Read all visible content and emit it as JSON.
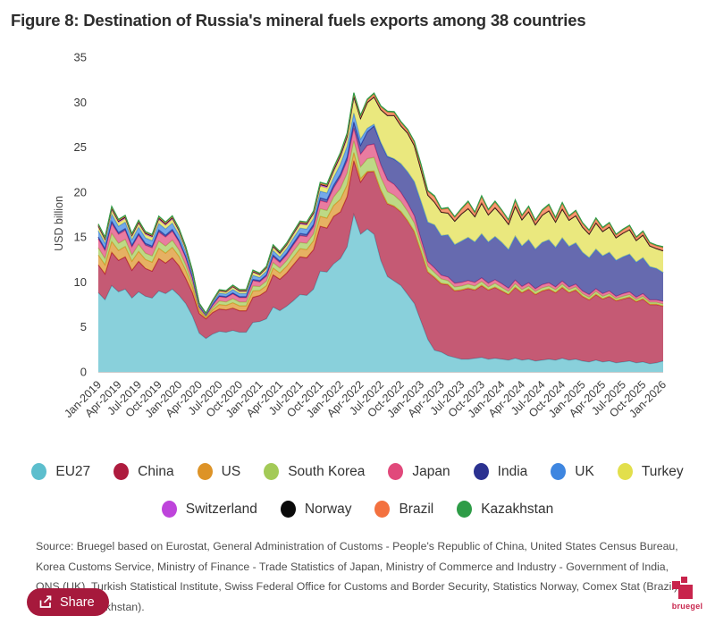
{
  "title": "Figure 8: Destination of Russia's mineral fuels exports among 38 countries",
  "source": "Source: Bruegel based on Eurostat, General Administration of Customs - People's Republic of China, United States Census Bureau, Korea Customs Service, Ministry of Finance - Trade Statistics of Japan, Ministry of Commerce and Industry - Government of India, ONS (UK), Turkish Statistical Institute, Swiss Federal Office for Customs and Border Security, Statistics Norway, Comex Stat (Brazil), Qazstat (Kazakhstan).",
  "share": {
    "label": "Share"
  },
  "logo": {
    "text": "bruegel",
    "color": "#c8244c"
  },
  "legend": {
    "rows": [
      [
        "EU27",
        "China",
        "US",
        "South Korea",
        "Japan",
        "India",
        "UK",
        "Turkey"
      ],
      [
        "Switzerland",
        "Norway",
        "Brazil",
        "Kazakhstan"
      ]
    ]
  },
  "chart_data": {
    "type": "area",
    "stacked": true,
    "title": "",
    "xlabel": "",
    "ylabel": "USD billion",
    "ylim": [
      0,
      35
    ],
    "yticks": [
      0,
      5,
      10,
      15,
      20,
      25,
      30,
      35
    ],
    "grid": false,
    "legend_position": "bottom",
    "x_tick_every": 3,
    "months": [
      "Jan-2019",
      "Feb-2019",
      "Mar-2019",
      "Apr-2019",
      "May-2019",
      "Jun-2019",
      "Jul-2019",
      "Aug-2019",
      "Sep-2019",
      "Oct-2019",
      "Nov-2019",
      "Dec-2019",
      "Jan-2020",
      "Feb-2020",
      "Mar-2020",
      "Apr-2020",
      "May-2020",
      "Jun-2020",
      "Jul-2020",
      "Aug-2020",
      "Sep-2020",
      "Oct-2020",
      "Nov-2020",
      "Dec-2020",
      "Jan-2021",
      "Feb-2021",
      "Mar-2021",
      "Apr-2021",
      "May-2021",
      "Jun-2021",
      "Jul-2021",
      "Aug-2021",
      "Sep-2021",
      "Oct-2021",
      "Nov-2021",
      "Dec-2021",
      "Jan-2022",
      "Feb-2022",
      "Mar-2022",
      "Apr-2022",
      "May-2022",
      "Jun-2022",
      "Jul-2022",
      "Aug-2022",
      "Sep-2022",
      "Oct-2022",
      "Nov-2022",
      "Dec-2022",
      "Jan-2023",
      "Feb-2023",
      "Mar-2023",
      "Apr-2023",
      "May-2023",
      "Jun-2023",
      "Jul-2023",
      "Aug-2023",
      "Sep-2023",
      "Oct-2023",
      "Nov-2023",
      "Dec-2023",
      "Jan-2024",
      "Feb-2024",
      "Mar-2024",
      "Apr-2024",
      "May-2024",
      "Jun-2024",
      "Jul-2024",
      "Aug-2024",
      "Sep-2024",
      "Oct-2024",
      "Nov-2024",
      "Dec-2024",
      "Jan-2025",
      "Feb-2025",
      "Mar-2025",
      "Apr-2025",
      "May-2025",
      "Jun-2025",
      "Jul-2025",
      "Aug-2025",
      "Sep-2025",
      "Oct-2025",
      "Nov-2025",
      "Dec-2025",
      "Jan-2026"
    ],
    "series": [
      {
        "name": "EU27",
        "color": "#5cbecd",
        "values": [
          8.8,
          8.0,
          9.6,
          8.9,
          9.2,
          8.2,
          8.9,
          8.4,
          8.2,
          9.0,
          8.7,
          9.2,
          8.5,
          7.6,
          6.2,
          4.3,
          3.7,
          4.2,
          4.5,
          4.4,
          4.6,
          4.4,
          4.4,
          5.5,
          5.6,
          5.9,
          7.2,
          6.8,
          7.3,
          7.9,
          8.6,
          8.5,
          9.2,
          11.2,
          11.1,
          12.0,
          12.6,
          13.9,
          17.5,
          15.3,
          15.9,
          15.3,
          12.4,
          10.6,
          10.1,
          9.6,
          8.6,
          7.6,
          5.6,
          3.6,
          2.4,
          2.2,
          1.8,
          1.6,
          1.4,
          1.4,
          1.5,
          1.6,
          1.4,
          1.5,
          1.4,
          1.3,
          1.5,
          1.3,
          1.4,
          1.2,
          1.3,
          1.4,
          1.3,
          1.5,
          1.3,
          1.4,
          1.2,
          1.1,
          1.3,
          1.1,
          1.2,
          1.0,
          1.1,
          1.2,
          1.0,
          1.1,
          0.9,
          1.0,
          1.2
        ]
      },
      {
        "name": "China",
        "color": "#ae1b3e",
        "values": [
          3.1,
          2.9,
          3.7,
          3.5,
          3.6,
          3.1,
          3.4,
          3.1,
          3.0,
          3.6,
          3.4,
          3.5,
          3.3,
          2.8,
          2.6,
          2.2,
          2.2,
          2.4,
          2.5,
          2.5,
          2.5,
          2.4,
          2.4,
          2.8,
          2.9,
          3.1,
          3.6,
          3.5,
          3.7,
          4.0,
          4.2,
          4.2,
          4.4,
          5.0,
          4.9,
          5.3,
          5.2,
          5.6,
          6.0,
          5.8,
          6.3,
          7.0,
          7.8,
          8.1,
          8.3,
          8.2,
          8.2,
          8.0,
          7.8,
          7.5,
          8.1,
          7.6,
          7.9,
          7.4,
          7.7,
          7.9,
          7.6,
          8.0,
          7.7,
          7.9,
          7.6,
          7.3,
          7.9,
          7.5,
          7.8,
          7.4,
          7.7,
          7.8,
          7.5,
          7.9,
          7.5,
          7.7,
          7.2,
          6.9,
          7.3,
          7.0,
          7.2,
          6.9,
          7.0,
          7.1,
          6.8,
          7.0,
          6.6,
          6.5,
          6.1
        ]
      },
      {
        "name": "US",
        "color": "#dd9327",
        "values": [
          1.1,
          1.0,
          1.2,
          1.1,
          1.15,
          1.0,
          1.1,
          1.0,
          1.0,
          1.15,
          1.1,
          1.15,
          1.05,
          0.9,
          0.65,
          0.3,
          0.15,
          0.3,
          0.5,
          0.5,
          0.6,
          0.55,
          0.55,
          0.7,
          0.55,
          0.6,
          0.75,
          0.7,
          0.75,
          0.85,
          0.9,
          0.9,
          1.0,
          1.1,
          1.1,
          1.2,
          1.4,
          1.3,
          0.9,
          0.4,
          0.1,
          0.05,
          0.05,
          0.05,
          0.05,
          0.05,
          0.05,
          0.05,
          0.05,
          0.05,
          0.05,
          0.05,
          0.05,
          0.05,
          0.05,
          0.05,
          0.05,
          0.05,
          0.05,
          0.05,
          0.05,
          0.05,
          0.05,
          0.05,
          0.05,
          0.05,
          0.05,
          0.05,
          0.05,
          0.05,
          0.05,
          0.05,
          0.05,
          0.05,
          0.05,
          0.05,
          0.05,
          0.05,
          0.05,
          0.05,
          0.05,
          0.05,
          0.05,
          0.05,
          0.05
        ]
      },
      {
        "name": "South Korea",
        "color": "#a3ca57",
        "values": [
          0.8,
          0.7,
          0.9,
          0.8,
          0.8,
          0.7,
          0.8,
          0.7,
          0.7,
          0.8,
          0.8,
          0.8,
          0.7,
          0.6,
          0.45,
          0.2,
          0.1,
          0.25,
          0.38,
          0.38,
          0.45,
          0.42,
          0.42,
          0.55,
          0.45,
          0.5,
          0.6,
          0.55,
          0.6,
          0.65,
          0.7,
          0.7,
          0.75,
          0.85,
          0.85,
          0.95,
          1.2,
          1.3,
          1.3,
          1.3,
          1.4,
          1.5,
          1.4,
          1.3,
          1.2,
          1.1,
          1.0,
          0.9,
          0.7,
          0.6,
          0.5,
          0.5,
          0.4,
          0.4,
          0.4,
          0.4,
          0.4,
          0.4,
          0.3,
          0.4,
          0.35,
          0.3,
          0.35,
          0.3,
          0.3,
          0.3,
          0.3,
          0.3,
          0.3,
          0.3,
          0.3,
          0.3,
          0.25,
          0.25,
          0.3,
          0.25,
          0.25,
          0.2,
          0.25,
          0.25,
          0.2,
          0.25,
          0.2,
          0.2,
          0.2
        ]
      },
      {
        "name": "Japan",
        "color": "#e1497b",
        "values": [
          1.0,
          0.9,
          1.1,
          1.0,
          1.0,
          0.9,
          1.0,
          0.9,
          0.9,
          1.0,
          1.0,
          1.0,
          0.9,
          0.8,
          0.55,
          0.25,
          0.12,
          0.3,
          0.48,
          0.48,
          0.52,
          0.48,
          0.48,
          0.6,
          0.5,
          0.55,
          0.65,
          0.6,
          0.65,
          0.7,
          0.75,
          0.75,
          0.8,
          0.9,
          0.9,
          1.0,
          1.3,
          1.4,
          1.4,
          1.4,
          1.5,
          1.5,
          1.4,
          1.3,
          1.2,
          1.0,
          0.9,
          0.8,
          0.6,
          0.5,
          0.5,
          0.4,
          0.4,
          0.4,
          0.4,
          0.4,
          0.4,
          0.4,
          0.4,
          0.4,
          0.4,
          0.35,
          0.4,
          0.35,
          0.35,
          0.3,
          0.35,
          0.35,
          0.3,
          0.35,
          0.3,
          0.3,
          0.3,
          0.3,
          0.3,
          0.3,
          0.3,
          0.25,
          0.3,
          0.3,
          0.25,
          0.3,
          0.25,
          0.25,
          0.3
        ]
      },
      {
        "name": "India",
        "color": "#2b3190",
        "values": [
          0.2,
          0.2,
          0.25,
          0.2,
          0.2,
          0.2,
          0.2,
          0.2,
          0.2,
          0.25,
          0.2,
          0.2,
          0.18,
          0.15,
          0.1,
          0.05,
          0.04,
          0.06,
          0.1,
          0.1,
          0.12,
          0.12,
          0.12,
          0.14,
          0.15,
          0.16,
          0.2,
          0.18,
          0.2,
          0.22,
          0.24,
          0.24,
          0.26,
          0.3,
          0.3,
          0.32,
          0.3,
          0.4,
          0.7,
          1.0,
          1.5,
          2.0,
          2.4,
          2.6,
          2.8,
          3.2,
          3.5,
          3.8,
          4.2,
          4.4,
          4.8,
          4.4,
          4.7,
          4.3,
          4.6,
          4.8,
          4.5,
          4.9,
          4.6,
          4.8,
          4.6,
          4.3,
          4.9,
          4.5,
          4.8,
          4.4,
          4.7,
          4.8,
          4.4,
          4.8,
          4.5,
          4.6,
          4.3,
          4.1,
          4.4,
          4.2,
          4.3,
          4.0,
          4.1,
          4.2,
          3.9,
          4.0,
          3.7,
          3.5,
          3.2
        ]
      },
      {
        "name": "UK",
        "color": "#3e86e0",
        "values": [
          0.7,
          0.6,
          0.8,
          0.7,
          0.7,
          0.6,
          0.7,
          0.6,
          0.6,
          0.7,
          0.7,
          0.7,
          0.6,
          0.5,
          0.35,
          0.15,
          0.08,
          0.2,
          0.3,
          0.3,
          0.38,
          0.34,
          0.34,
          0.45,
          0.35,
          0.4,
          0.5,
          0.45,
          0.5,
          0.55,
          0.6,
          0.6,
          0.65,
          0.75,
          0.75,
          0.85,
          1.1,
          1.2,
          1.0,
          0.7,
          0.4,
          0.2,
          0.1,
          0.05,
          0.05,
          0,
          0,
          0,
          0,
          0,
          0,
          0,
          0,
          0,
          0,
          0,
          0,
          0,
          0,
          0,
          0,
          0,
          0,
          0,
          0,
          0,
          0,
          0,
          0,
          0,
          0,
          0,
          0,
          0,
          0,
          0,
          0,
          0,
          0,
          0,
          0,
          0,
          0,
          0,
          0
        ]
      },
      {
        "name": "Turkey",
        "color": "#e2df4c",
        "values": [
          0.38,
          0.34,
          0.42,
          0.38,
          0.38,
          0.34,
          0.38,
          0.36,
          0.34,
          0.4,
          0.38,
          0.4,
          0.36,
          0.3,
          0.2,
          0.1,
          0.06,
          0.12,
          0.2,
          0.2,
          0.24,
          0.22,
          0.22,
          0.3,
          0.25,
          0.28,
          0.34,
          0.32,
          0.34,
          0.38,
          0.42,
          0.42,
          0.46,
          0.54,
          0.54,
          0.6,
          0.7,
          0.8,
          1.6,
          2.2,
          2.8,
          3.0,
          3.6,
          4.5,
          4.8,
          4.2,
          4.3,
          4.0,
          3.5,
          3.0,
          2.5,
          2.6,
          2.4,
          2.6,
          3.0,
          3.2,
          2.8,
          3.4,
          3.0,
          3.2,
          3.0,
          2.8,
          3.3,
          2.9,
          3.1,
          2.7,
          3.0,
          3.2,
          2.8,
          3.2,
          2.9,
          3.0,
          2.8,
          2.6,
          2.9,
          2.7,
          2.8,
          2.5,
          2.6,
          2.7,
          2.4,
          2.5,
          2.3,
          2.2,
          2.4
        ]
      },
      {
        "name": "Switzerland",
        "color": "#be44db",
        "values": [
          0.14,
          0.12,
          0.16,
          0.14,
          0.14,
          0.12,
          0.14,
          0.12,
          0.12,
          0.15,
          0.14,
          0.15,
          0.13,
          0.1,
          0.07,
          0.03,
          0.02,
          0.04,
          0.06,
          0.06,
          0.08,
          0.07,
          0.07,
          0.1,
          0.07,
          0.08,
          0.1,
          0.09,
          0.1,
          0.11,
          0.12,
          0.12,
          0.13,
          0.15,
          0.15,
          0.17,
          0.22,
          0.25,
          0.2,
          0.1,
          0.05,
          0.03,
          0.02,
          0.02,
          0.02,
          0.02,
          0.02,
          0.02,
          0.02,
          0.02,
          0.02,
          0.02,
          0.02,
          0.02,
          0.02,
          0.02,
          0.02,
          0.02,
          0.02,
          0.02,
          0.02,
          0.02,
          0.02,
          0.02,
          0.02,
          0.02,
          0.02,
          0.02,
          0.02,
          0.02,
          0.02,
          0.02,
          0.02,
          0.02,
          0.02,
          0.02,
          0.02,
          0.02,
          0.02,
          0.02,
          0.02,
          0.02,
          0.02,
          0.02,
          0.02
        ]
      },
      {
        "name": "Norway",
        "color": "#0a0a0a",
        "values": [
          0.05,
          0.05,
          0.06,
          0.05,
          0.05,
          0.05,
          0.05,
          0.05,
          0.05,
          0.06,
          0.05,
          0.06,
          0.05,
          0.04,
          0.03,
          0.02,
          0.02,
          0.02,
          0.03,
          0.03,
          0.04,
          0.04,
          0.04,
          0.04,
          0.04,
          0.04,
          0.05,
          0.05,
          0.05,
          0.05,
          0.06,
          0.06,
          0.06,
          0.07,
          0.07,
          0.08,
          0.07,
          0.08,
          0.06,
          0.03,
          0.02,
          0.01,
          0.01,
          0.01,
          0.01,
          0,
          0,
          0,
          0,
          0,
          0,
          0,
          0,
          0,
          0,
          0,
          0,
          0,
          0,
          0,
          0,
          0,
          0,
          0,
          0,
          0,
          0,
          0,
          0,
          0,
          0,
          0,
          0,
          0,
          0,
          0,
          0,
          0,
          0,
          0,
          0,
          0,
          0,
          0,
          0
        ]
      },
      {
        "name": "Brazil",
        "color": "#f3713f",
        "values": [
          0.1,
          0.09,
          0.11,
          0.1,
          0.1,
          0.09,
          0.1,
          0.09,
          0.09,
          0.11,
          0.1,
          0.11,
          0.1,
          0.08,
          0.05,
          0.02,
          0.02,
          0.03,
          0.05,
          0.05,
          0.06,
          0.06,
          0.06,
          0.08,
          0.06,
          0.07,
          0.08,
          0.08,
          0.08,
          0.09,
          0.1,
          0.1,
          0.11,
          0.13,
          0.13,
          0.15,
          0.18,
          0.2,
          0.25,
          0.2,
          0.25,
          0.3,
          0.3,
          0.35,
          0.3,
          0.35,
          0.3,
          0.35,
          0.5,
          0.4,
          0.6,
          0.3,
          0.5,
          0.4,
          0.5,
          0.7,
          0.4,
          0.7,
          0.5,
          0.6,
          0.5,
          0.4,
          0.6,
          0.4,
          0.5,
          0.4,
          0.5,
          0.6,
          0.4,
          0.6,
          0.4,
          0.5,
          0.4,
          0.35,
          0.45,
          0.35,
          0.4,
          0.3,
          0.35,
          0.4,
          0.3,
          0.35,
          0.3,
          0.3,
          0.35
        ]
      },
      {
        "name": "Kazakhstan",
        "color": "#2e9c47",
        "values": [
          0.09,
          0.08,
          0.1,
          0.09,
          0.09,
          0.08,
          0.09,
          0.08,
          0.08,
          0.1,
          0.09,
          0.1,
          0.09,
          0.08,
          0.06,
          0.03,
          0.03,
          0.04,
          0.05,
          0.05,
          0.06,
          0.06,
          0.06,
          0.07,
          0.06,
          0.06,
          0.07,
          0.07,
          0.07,
          0.08,
          0.08,
          0.08,
          0.09,
          0.1,
          0.1,
          0.11,
          0.13,
          0.14,
          0.14,
          0.12,
          0.12,
          0.12,
          0.12,
          0.12,
          0.12,
          0.12,
          0.12,
          0.12,
          0.12,
          0.1,
          0.12,
          0.1,
          0.12,
          0.1,
          0.12,
          0.12,
          0.1,
          0.12,
          0.1,
          0.12,
          0.1,
          0.1,
          0.12,
          0.1,
          0.1,
          0.1,
          0.1,
          0.12,
          0.1,
          0.12,
          0.1,
          0.1,
          0.1,
          0.1,
          0.1,
          0.1,
          0.1,
          0.08,
          0.1,
          0.1,
          0.08,
          0.1,
          0.08,
          0.08,
          0.1
        ]
      }
    ]
  }
}
